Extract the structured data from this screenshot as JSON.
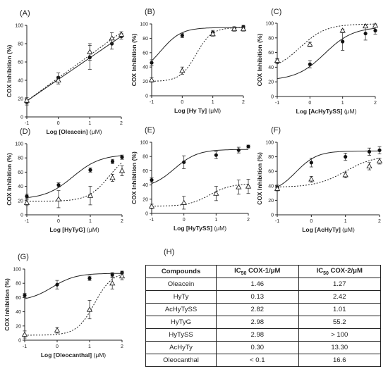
{
  "chart_data": [
    {
      "type": "scatter",
      "panel": "(A)",
      "title": "",
      "xlabel_main": "Log [Oleacein]",
      "xlabel_unit": "(μM)",
      "ylabel": "COX Inhibition (%)",
      "xlim": [
        -1,
        2
      ],
      "ylim": [
        0,
        100
      ],
      "yticks": [
        0,
        20,
        40,
        60,
        80,
        100
      ],
      "xticks": [
        -1,
        0,
        1,
        2
      ],
      "grid": false,
      "fit": "linear",
      "series": [
        {
          "marker": "circle",
          "line": "solid",
          "x": [
            -1,
            0,
            1,
            1.7,
            2
          ],
          "y": [
            16,
            43,
            65,
            80,
            88
          ],
          "err": [
            3,
            5,
            13,
            6,
            3
          ]
        },
        {
          "marker": "triangle",
          "line": "dotted",
          "x": [
            -1,
            0,
            1,
            1.7,
            2
          ],
          "y": [
            18,
            40,
            71,
            86,
            90
          ],
          "err": [
            3,
            4,
            9,
            6,
            3
          ]
        }
      ]
    },
    {
      "type": "scatter",
      "panel": "(B)",
      "title": "",
      "xlabel_main": "Log [Hy Ty]",
      "xlabel_unit": "(μM)",
      "ylabel": "COX Inhibition (%)",
      "xlim": [
        -1,
        2
      ],
      "ylim": [
        0,
        100
      ],
      "yticks": [
        0,
        20,
        40,
        60,
        80,
        100
      ],
      "xticks": [
        -1,
        0,
        1,
        2
      ],
      "grid": false,
      "fit": "sigmoid",
      "series": [
        {
          "marker": "circle",
          "line": "solid",
          "x": [
            -1,
            0,
            1,
            1.7,
            2
          ],
          "y": [
            46,
            84,
            88,
            93,
            96
          ],
          "err": [
            4,
            3,
            3,
            3,
            2
          ],
          "curve": {
            "bottom": 30,
            "top": 95,
            "ec": -0.7,
            "hill": 1.3
          }
        },
        {
          "marker": "triangle",
          "line": "dotted",
          "x": [
            -1,
            0,
            1,
            1.7,
            2
          ],
          "y": [
            22,
            35,
            86,
            93,
            93
          ],
          "err": [
            3,
            5,
            3,
            3,
            3
          ],
          "curve": {
            "bottom": 20,
            "top": 95,
            "ec": 0.45,
            "hill": 1.7
          }
        }
      ]
    },
    {
      "type": "scatter",
      "panel": "(C)",
      "title": "",
      "xlabel_main": "Log [AcHyTySS]",
      "xlabel_unit": "(μM)",
      "ylabel": "COX Inhibition (%)",
      "xlim": [
        -1,
        2
      ],
      "ylim": [
        0,
        100
      ],
      "yticks": [
        0,
        20,
        40,
        60,
        80,
        100
      ],
      "xticks": [
        -1,
        0,
        1,
        2
      ],
      "grid": false,
      "fit": "sigmoid",
      "series": [
        {
          "marker": "circle",
          "line": "solid",
          "x": [
            -1,
            0,
            1,
            1.7,
            2
          ],
          "y": [
            48,
            44,
            75,
            86,
            90
          ],
          "err": [
            3,
            5,
            12,
            9,
            5
          ],
          "curve": {
            "bottom": 22,
            "top": 95,
            "ec": 0.45,
            "hill": 1.0
          }
        },
        {
          "marker": "triangle",
          "line": "dotted",
          "x": [
            -1,
            0,
            1,
            1.7,
            2
          ],
          "y": [
            49,
            71,
            90,
            96,
            97
          ],
          "err": [
            3,
            3,
            2,
            2,
            2
          ],
          "curve": {
            "bottom": 35,
            "top": 99,
            "ec": -0.3,
            "hill": 1.1
          }
        }
      ]
    },
    {
      "type": "scatter",
      "panel": "(D)",
      "title": "",
      "xlabel_main": "Log  [HyTyG]",
      "xlabel_unit": "(μM)",
      "ylabel": "COX Inhibition (%)",
      "xlim": [
        -1,
        2
      ],
      "ylim": [
        0,
        100
      ],
      "yticks": [
        0,
        20,
        40,
        60,
        80,
        100
      ],
      "xticks": [
        -1,
        0,
        1,
        2
      ],
      "grid": false,
      "fit": "sigmoid",
      "series": [
        {
          "marker": "circle",
          "line": "solid",
          "x": [
            -1,
            0,
            1,
            1.7,
            2
          ],
          "y": [
            26,
            42,
            63,
            75,
            81
          ],
          "err": [
            3,
            3,
            3,
            3,
            3
          ],
          "curve": {
            "bottom": 22,
            "top": 85,
            "ec": 0.45,
            "hill": 1.0
          }
        },
        {
          "marker": "triangle",
          "line": "dotted",
          "x": [
            -1,
            0,
            1,
            1.7,
            2
          ],
          "y": [
            17,
            22,
            27,
            52,
            62
          ],
          "err": [
            4,
            12,
            13,
            5,
            7
          ],
          "curve": {
            "bottom": 19,
            "top": 90,
            "ec": 1.6,
            "hill": 1.3
          }
        }
      ]
    },
    {
      "type": "scatter",
      "panel": "(E)",
      "title": "",
      "xlabel_main": "Log [HyTySS]",
      "xlabel_unit": "(μM)",
      "ylabel": "COX Inhibition (%)",
      "xlim": [
        -1,
        2
      ],
      "ylim": [
        0,
        100
      ],
      "yticks": [
        0,
        20,
        40,
        60,
        80,
        100
      ],
      "xticks": [
        -1,
        0,
        1,
        2
      ],
      "grid": false,
      "fit": "sigmoid",
      "series": [
        {
          "marker": "circle",
          "line": "solid",
          "x": [
            -1,
            0,
            1,
            1.7,
            2
          ],
          "y": [
            47,
            72,
            82,
            89,
            94
          ],
          "err": [
            3,
            9,
            5,
            4,
            2
          ],
          "curve": {
            "bottom": 35,
            "top": 90,
            "ec": -0.3,
            "hill": 1.2
          }
        },
        {
          "marker": "triangle",
          "line": "dotted",
          "x": [
            -1,
            0,
            1,
            1.7,
            2
          ],
          "y": [
            10,
            15,
            28,
            37,
            38
          ],
          "err": [
            3,
            9,
            10,
            10,
            10
          ],
          "curve": {
            "bottom": 10,
            "top": 42,
            "ec": 0.8,
            "hill": 1.3
          }
        }
      ]
    },
    {
      "type": "scatter",
      "panel": "(F)",
      "title": "",
      "xlabel_main": "Log [AcHyTy]",
      "xlabel_unit": "(μM)",
      "ylabel": "COX Inhibition (%)",
      "xlim": [
        -1,
        2
      ],
      "ylim": [
        0,
        100
      ],
      "yticks": [
        0,
        20,
        40,
        60,
        80,
        100
      ],
      "xticks": [
        -1,
        0,
        1,
        2
      ],
      "grid": false,
      "fit": "sigmoid",
      "series": [
        {
          "marker": "circle",
          "line": "solid",
          "x": [
            -1,
            0,
            1,
            1.7,
            2
          ],
          "y": [
            38,
            72,
            80,
            87,
            89
          ],
          "err": [
            3,
            6,
            5,
            5,
            5
          ],
          "curve": {
            "bottom": 30,
            "top": 88,
            "ec": -0.45,
            "hill": 1.4
          }
        },
        {
          "marker": "triangle",
          "line": "dotted",
          "x": [
            -1,
            0,
            1,
            1.7,
            2
          ],
          "y": [
            36,
            49,
            55,
            67,
            74
          ],
          "err": [
            3,
            4,
            4,
            5,
            4
          ],
          "curve": {
            "bottom": 38,
            "top": 82,
            "ec": 1.0,
            "hill": 1.0
          }
        }
      ]
    },
    {
      "type": "scatter",
      "panel": "(G)",
      "title": "",
      "xlabel_main": "Log [Oleocanthal]",
      "xlabel_unit": "(μM)",
      "ylabel": "COX Inhibition (%)",
      "xlim": [
        -1,
        2
      ],
      "ylim": [
        0,
        100
      ],
      "yticks": [
        0,
        20,
        40,
        60,
        80,
        100
      ],
      "xticks": [
        -1,
        0,
        1,
        2
      ],
      "grid": false,
      "fit": "sigmoid",
      "series": [
        {
          "marker": "circle",
          "line": "solid",
          "x": [
            -1,
            0,
            1,
            1.7,
            2
          ],
          "y": [
            63,
            78,
            87,
            92,
            95
          ],
          "err": [
            3,
            6,
            3,
            3,
            2
          ],
          "curve": {
            "bottom": 55,
            "top": 94,
            "ec": -0.15,
            "hill": 1.2
          }
        },
        {
          "marker": "triangle",
          "line": "dotted",
          "x": [
            -1,
            0,
            1,
            1.7,
            2
          ],
          "y": [
            8,
            14,
            43,
            80,
            90
          ],
          "err": [
            5,
            4,
            13,
            8,
            5
          ],
          "curve": {
            "bottom": 7,
            "top": 96,
            "ec": 1.15,
            "hill": 1.6
          }
        }
      ]
    },
    {
      "type": "table",
      "panel": "(H)",
      "columns": [
        {
          "main": "Compounds",
          "sub": "",
          "rest": ""
        },
        {
          "main": "IC",
          "sub": "50",
          "rest": " COX-1/μM"
        },
        {
          "main": "IC",
          "sub": "50",
          "rest": " COX-2/μM"
        }
      ],
      "rows": [
        [
          "Oleacein",
          "1.46",
          "1.27"
        ],
        [
          "HyTy",
          "0.13",
          "2.42"
        ],
        [
          "AcHyTySS",
          "2.82",
          "1.01"
        ],
        [
          "HyTyG",
          "2.98",
          "55.2"
        ],
        [
          "HyTySS",
          "2.98",
          "> 100"
        ],
        [
          "AcHyTy",
          "0.30",
          "13.30"
        ],
        [
          "Oleocanthal",
          "< 0.1",
          "16.6"
        ]
      ]
    }
  ]
}
